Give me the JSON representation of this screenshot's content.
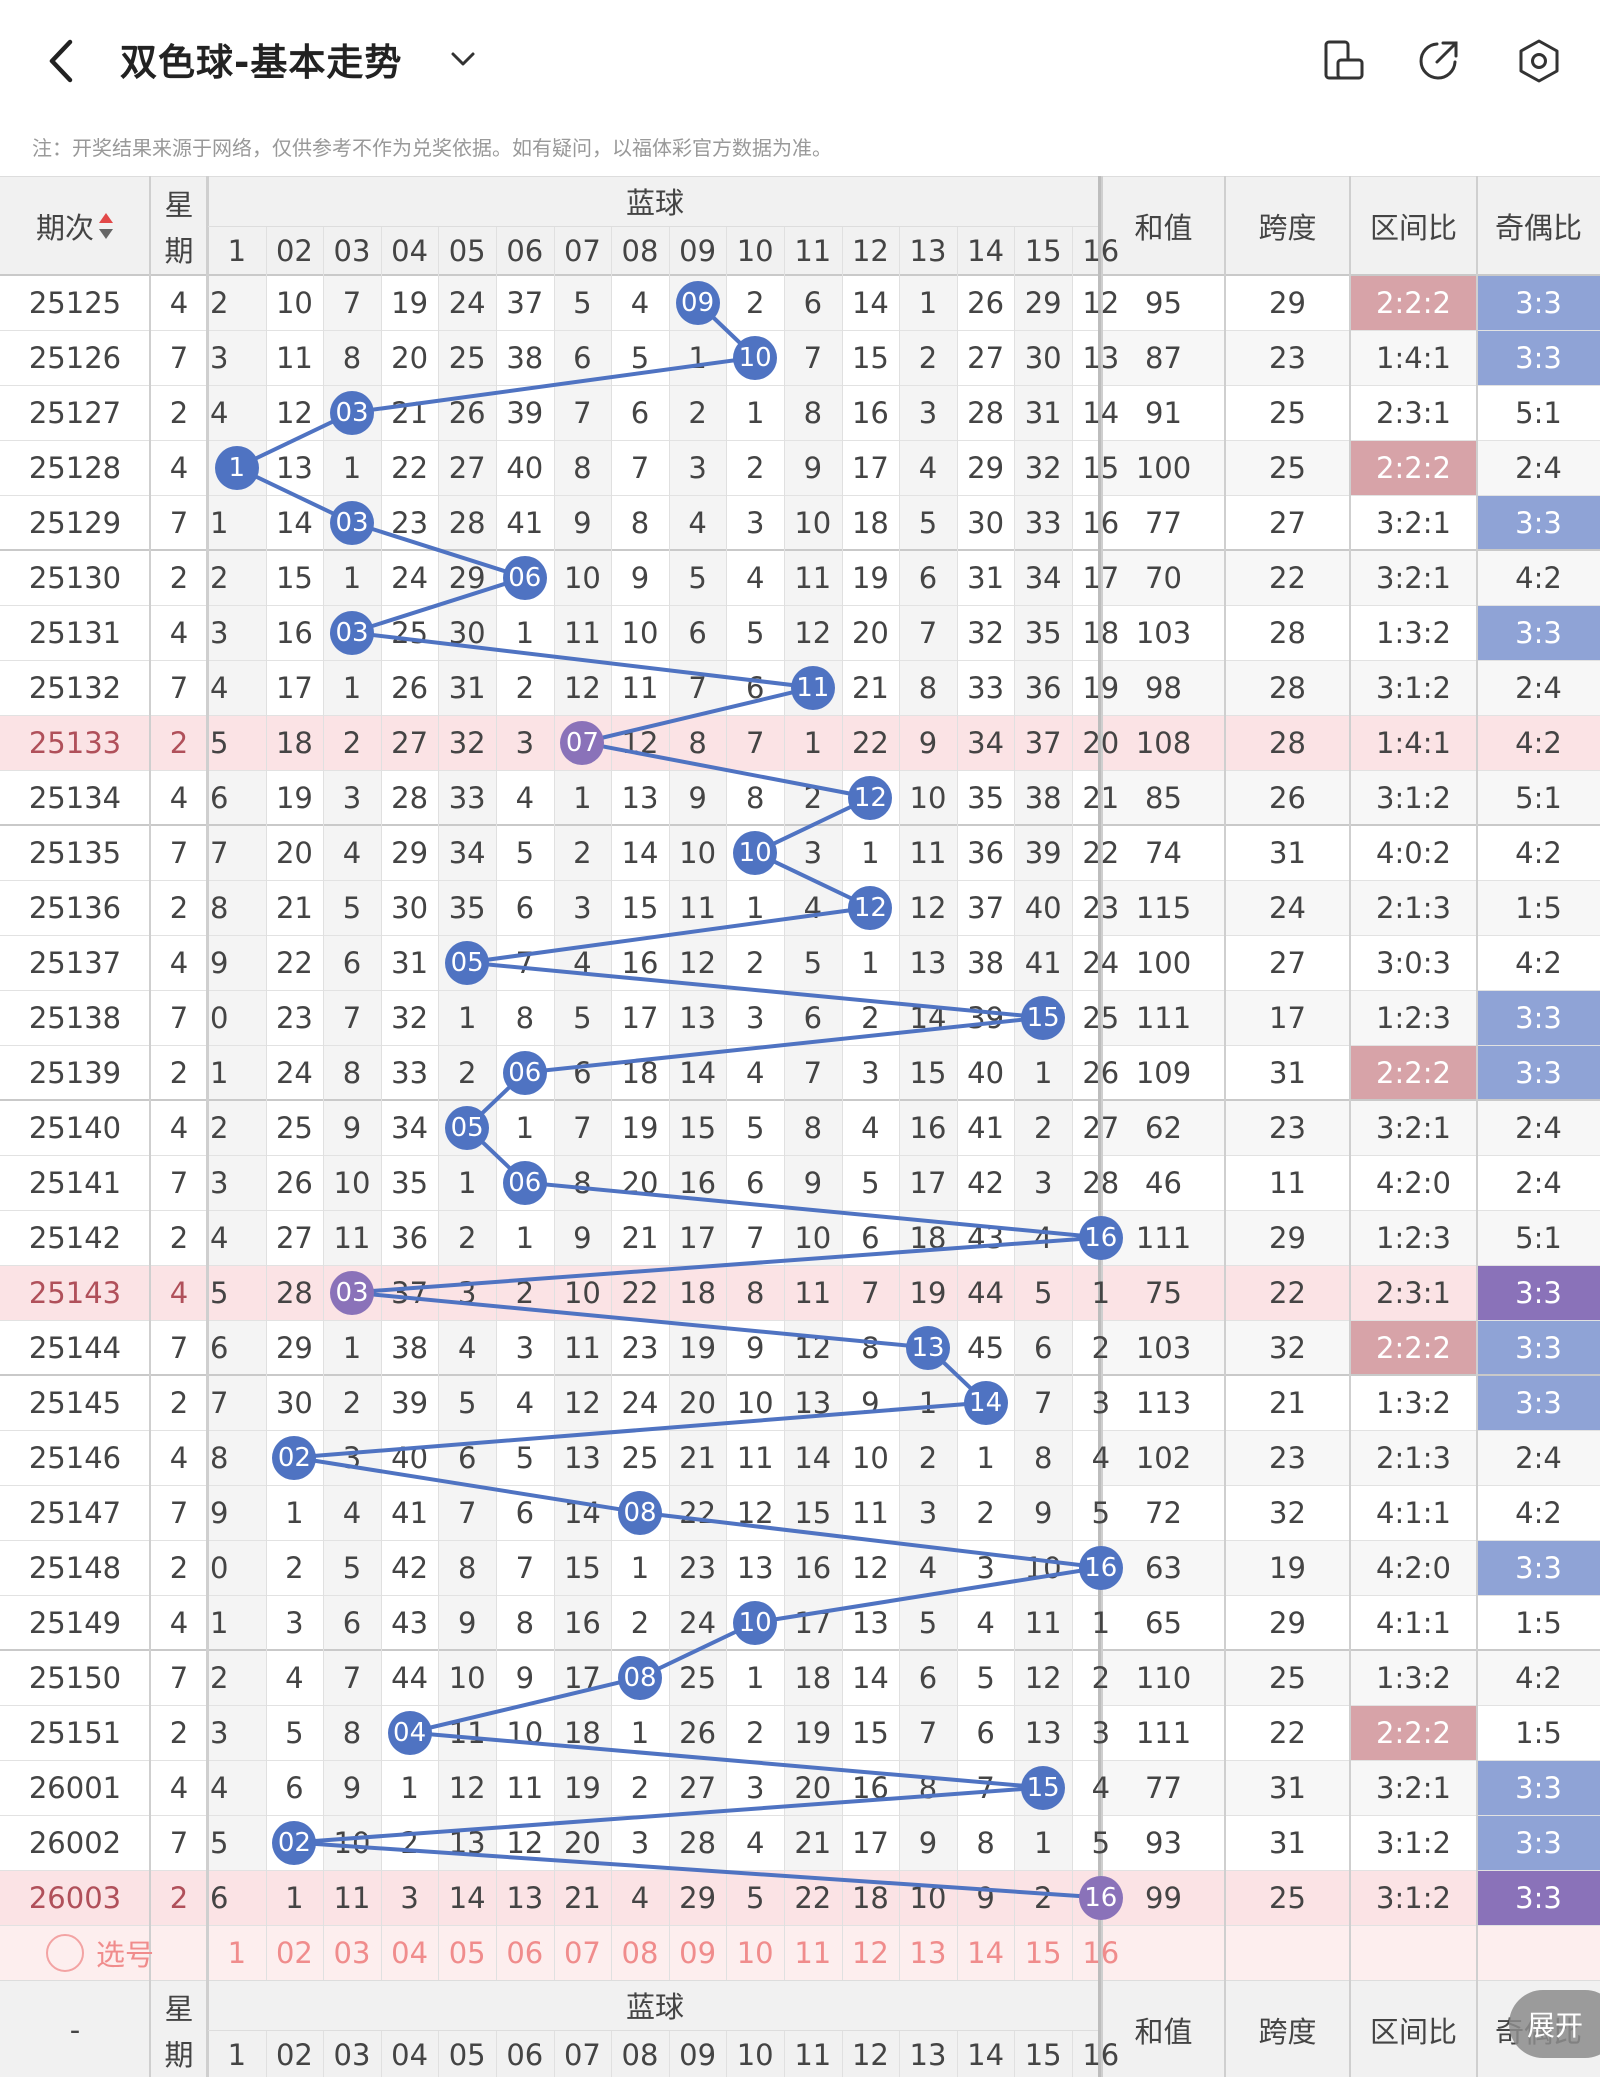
{
  "header": {
    "title": "双色球-基本走势",
    "back_icon": "chevron-left-icon",
    "dropdown_icon": "chevron-down-icon",
    "icons": [
      "phone-landscape-icon",
      "share-icon",
      "settings-hexagon-icon"
    ]
  },
  "note": "注：开奖结果来源于网络，仅供参考不作为兑奖依据。如有疑问，以福体彩官方数据为准。",
  "table": {
    "col_issue": "期次",
    "col_week": "星期",
    "blue_group": "蓝球",
    "blue_cols": [
      "1",
      "02",
      "03",
      "04",
      "05",
      "06",
      "07",
      "08",
      "09",
      "10",
      "11",
      "12",
      "13",
      "14",
      "15",
      "16"
    ],
    "col_sum": "和值",
    "col_span": "跨度",
    "col_zone": "区间比",
    "col_odd": "奇偶比",
    "sort_icon": "sort-arrows-icon",
    "rows": [
      {
        "issue": "25125",
        "week": "4",
        "cells": [
          "2",
          "10",
          "7",
          "19",
          "24",
          "37",
          "5",
          "4",
          "09",
          "2",
          "6",
          "14",
          "1",
          "26",
          "29",
          "12"
        ],
        "blue": 9,
        "sum": "95",
        "span": "29",
        "zone": "2:2:2",
        "odd": "3:3",
        "zone_hl": true,
        "odd_hl": true,
        "row_hl": false
      },
      {
        "issue": "25126",
        "week": "7",
        "cells": [
          "3",
          "11",
          "8",
          "20",
          "25",
          "38",
          "6",
          "5",
          "1",
          "10",
          "7",
          "15",
          "2",
          "27",
          "30",
          "13"
        ],
        "blue": 10,
        "sum": "87",
        "span": "23",
        "zone": "1:4:1",
        "odd": "3:3",
        "zone_hl": false,
        "odd_hl": true,
        "row_hl": false
      },
      {
        "issue": "25127",
        "week": "2",
        "cells": [
          "4",
          "12",
          "03",
          "21",
          "26",
          "39",
          "7",
          "6",
          "2",
          "1",
          "8",
          "16",
          "3",
          "28",
          "31",
          "14"
        ],
        "blue": 3,
        "sum": "91",
        "span": "25",
        "zone": "2:3:1",
        "odd": "5:1",
        "zone_hl": false,
        "odd_hl": false,
        "row_hl": false
      },
      {
        "issue": "25128",
        "week": "4",
        "cells": [
          "1",
          "13",
          "1",
          "22",
          "27",
          "40",
          "8",
          "7",
          "3",
          "2",
          "9",
          "17",
          "4",
          "29",
          "32",
          "15"
        ],
        "blue": 1,
        "sum": "100",
        "span": "25",
        "zone": "2:2:2",
        "odd": "2:4",
        "zone_hl": true,
        "odd_hl": false,
        "row_hl": false
      },
      {
        "issue": "25129",
        "week": "7",
        "cells": [
          "1",
          "14",
          "03",
          "23",
          "28",
          "41",
          "9",
          "8",
          "4",
          "3",
          "10",
          "18",
          "5",
          "30",
          "33",
          "16"
        ],
        "blue": 3,
        "sum": "77",
        "span": "27",
        "zone": "3:2:1",
        "odd": "3:3",
        "zone_hl": false,
        "odd_hl": true,
        "row_hl": false
      },
      {
        "issue": "25130",
        "week": "2",
        "cells": [
          "2",
          "15",
          "1",
          "24",
          "29",
          "06",
          "10",
          "9",
          "5",
          "4",
          "11",
          "19",
          "6",
          "31",
          "34",
          "17"
        ],
        "blue": 6,
        "sum": "70",
        "span": "22",
        "zone": "3:2:1",
        "odd": "4:2",
        "zone_hl": false,
        "odd_hl": false,
        "row_hl": false
      },
      {
        "issue": "25131",
        "week": "4",
        "cells": [
          "3",
          "16",
          "03",
          "25",
          "30",
          "1",
          "11",
          "10",
          "6",
          "5",
          "12",
          "20",
          "7",
          "32",
          "35",
          "18"
        ],
        "blue": 3,
        "sum": "103",
        "span": "28",
        "zone": "1:3:2",
        "odd": "3:3",
        "zone_hl": false,
        "odd_hl": true,
        "row_hl": false
      },
      {
        "issue": "25132",
        "week": "7",
        "cells": [
          "4",
          "17",
          "1",
          "26",
          "31",
          "2",
          "12",
          "11",
          "7",
          "6",
          "11",
          "21",
          "8",
          "33",
          "36",
          "19"
        ],
        "blue": 11,
        "sum": "98",
        "span": "28",
        "zone": "3:1:2",
        "odd": "2:4",
        "zone_hl": false,
        "odd_hl": false,
        "row_hl": false
      },
      {
        "issue": "25133",
        "week": "2",
        "cells": [
          "5",
          "18",
          "2",
          "27",
          "32",
          "3",
          "07",
          "12",
          "8",
          "7",
          "1",
          "22",
          "9",
          "34",
          "37",
          "20"
        ],
        "blue": 7,
        "sum": "108",
        "span": "28",
        "zone": "1:4:1",
        "odd": "4:2",
        "zone_hl": false,
        "odd_hl": false,
        "row_hl": true
      },
      {
        "issue": "25134",
        "week": "4",
        "cells": [
          "6",
          "19",
          "3",
          "28",
          "33",
          "4",
          "1",
          "13",
          "9",
          "8",
          "2",
          "12",
          "10",
          "35",
          "38",
          "21"
        ],
        "blue": 12,
        "sum": "85",
        "span": "26",
        "zone": "3:1:2",
        "odd": "5:1",
        "zone_hl": false,
        "odd_hl": false,
        "row_hl": false
      },
      {
        "issue": "25135",
        "week": "7",
        "cells": [
          "7",
          "20",
          "4",
          "29",
          "34",
          "5",
          "2",
          "14",
          "10",
          "10",
          "3",
          "1",
          "11",
          "36",
          "39",
          "22"
        ],
        "blue": 10,
        "sum": "74",
        "span": "31",
        "zone": "4:0:2",
        "odd": "4:2",
        "zone_hl": false,
        "odd_hl": false,
        "row_hl": false
      },
      {
        "issue": "25136",
        "week": "2",
        "cells": [
          "8",
          "21",
          "5",
          "30",
          "35",
          "6",
          "3",
          "15",
          "11",
          "1",
          "4",
          "12",
          "12",
          "37",
          "40",
          "23"
        ],
        "blue": 12,
        "sum": "115",
        "span": "24",
        "zone": "2:1:3",
        "odd": "1:5",
        "zone_hl": false,
        "odd_hl": false,
        "row_hl": false
      },
      {
        "issue": "25137",
        "week": "4",
        "cells": [
          "9",
          "22",
          "6",
          "31",
          "05",
          "7",
          "4",
          "16",
          "12",
          "2",
          "5",
          "1",
          "13",
          "38",
          "41",
          "24"
        ],
        "blue": 5,
        "sum": "100",
        "span": "27",
        "zone": "3:0:3",
        "odd": "4:2",
        "zone_hl": false,
        "odd_hl": false,
        "row_hl": false
      },
      {
        "issue": "25138",
        "week": "7",
        "cells": [
          "0",
          "23",
          "7",
          "32",
          "1",
          "8",
          "5",
          "17",
          "13",
          "3",
          "6",
          "2",
          "14",
          "39",
          "15",
          "25"
        ],
        "blue": 15,
        "sum": "111",
        "span": "17",
        "zone": "1:2:3",
        "odd": "3:3",
        "zone_hl": false,
        "odd_hl": true,
        "row_hl": false
      },
      {
        "issue": "25139",
        "week": "2",
        "cells": [
          "1",
          "24",
          "8",
          "33",
          "2",
          "06",
          "6",
          "18",
          "14",
          "4",
          "7",
          "3",
          "15",
          "40",
          "1",
          "26"
        ],
        "blue": 6,
        "sum": "109",
        "span": "31",
        "zone": "2:2:2",
        "odd": "3:3",
        "zone_hl": true,
        "odd_hl": true,
        "row_hl": false
      },
      {
        "issue": "25140",
        "week": "4",
        "cells": [
          "2",
          "25",
          "9",
          "34",
          "05",
          "1",
          "7",
          "19",
          "15",
          "5",
          "8",
          "4",
          "16",
          "41",
          "2",
          "27"
        ],
        "blue": 5,
        "sum": "62",
        "span": "23",
        "zone": "3:2:1",
        "odd": "2:4",
        "zone_hl": false,
        "odd_hl": false,
        "row_hl": false
      },
      {
        "issue": "25141",
        "week": "7",
        "cells": [
          "3",
          "26",
          "10",
          "35",
          "1",
          "06",
          "8",
          "20",
          "16",
          "6",
          "9",
          "5",
          "17",
          "42",
          "3",
          "28"
        ],
        "blue": 6,
        "sum": "46",
        "span": "11",
        "zone": "4:2:0",
        "odd": "2:4",
        "zone_hl": false,
        "odd_hl": false,
        "row_hl": false
      },
      {
        "issue": "25142",
        "week": "2",
        "cells": [
          "4",
          "27",
          "11",
          "36",
          "2",
          "1",
          "9",
          "21",
          "17",
          "7",
          "10",
          "6",
          "18",
          "43",
          "4",
          "16"
        ],
        "blue": 16,
        "sum": "111",
        "span": "29",
        "zone": "1:2:3",
        "odd": "5:1",
        "zone_hl": false,
        "odd_hl": false,
        "row_hl": false
      },
      {
        "issue": "25143",
        "week": "4",
        "cells": [
          "5",
          "28",
          "03",
          "37",
          "3",
          "2",
          "10",
          "22",
          "18",
          "8",
          "11",
          "7",
          "19",
          "44",
          "5",
          "1"
        ],
        "blue": 3,
        "sum": "75",
        "span": "22",
        "zone": "2:3:1",
        "odd": "3:3",
        "zone_hl": false,
        "odd_hl": true,
        "row_hl": true
      },
      {
        "issue": "25144",
        "week": "7",
        "cells": [
          "6",
          "29",
          "1",
          "38",
          "4",
          "3",
          "11",
          "23",
          "19",
          "9",
          "12",
          "8",
          "13",
          "45",
          "6",
          "2"
        ],
        "blue": 13,
        "sum": "103",
        "span": "32",
        "zone": "2:2:2",
        "odd": "3:3",
        "zone_hl": true,
        "odd_hl": true,
        "row_hl": false
      },
      {
        "issue": "25145",
        "week": "2",
        "cells": [
          "7",
          "30",
          "2",
          "39",
          "5",
          "4",
          "12",
          "24",
          "20",
          "10",
          "13",
          "9",
          "1",
          "14",
          "7",
          "3"
        ],
        "blue": 14,
        "sum": "113",
        "span": "21",
        "zone": "1:3:2",
        "odd": "3:3",
        "zone_hl": false,
        "odd_hl": true,
        "row_hl": false
      },
      {
        "issue": "25146",
        "week": "4",
        "cells": [
          "8",
          "02",
          "3",
          "40",
          "6",
          "5",
          "13",
          "25",
          "21",
          "11",
          "14",
          "10",
          "2",
          "1",
          "8",
          "4"
        ],
        "blue": 2,
        "sum": "102",
        "span": "23",
        "zone": "2:1:3",
        "odd": "2:4",
        "zone_hl": false,
        "odd_hl": false,
        "row_hl": false
      },
      {
        "issue": "25147",
        "week": "7",
        "cells": [
          "9",
          "1",
          "4",
          "41",
          "7",
          "6",
          "14",
          "08",
          "22",
          "12",
          "15",
          "11",
          "3",
          "2",
          "9",
          "5"
        ],
        "blue": 8,
        "sum": "72",
        "span": "32",
        "zone": "4:1:1",
        "odd": "4:2",
        "zone_hl": false,
        "odd_hl": false,
        "row_hl": false
      },
      {
        "issue": "25148",
        "week": "2",
        "cells": [
          "0",
          "2",
          "5",
          "42",
          "8",
          "7",
          "15",
          "1",
          "23",
          "13",
          "16",
          "12",
          "4",
          "3",
          "10",
          "16"
        ],
        "blue": 16,
        "sum": "63",
        "span": "19",
        "zone": "4:2:0",
        "odd": "3:3",
        "zone_hl": false,
        "odd_hl": true,
        "row_hl": false
      },
      {
        "issue": "25149",
        "week": "4",
        "cells": [
          "1",
          "3",
          "6",
          "43",
          "9",
          "8",
          "16",
          "2",
          "24",
          "10",
          "17",
          "13",
          "5",
          "4",
          "11",
          "1"
        ],
        "blue": 10,
        "sum": "65",
        "span": "29",
        "zone": "4:1:1",
        "odd": "1:5",
        "zone_hl": false,
        "odd_hl": false,
        "row_hl": false
      },
      {
        "issue": "25150",
        "week": "7",
        "cells": [
          "2",
          "4",
          "7",
          "44",
          "10",
          "9",
          "17",
          "08",
          "25",
          "1",
          "18",
          "14",
          "6",
          "5",
          "12",
          "2"
        ],
        "blue": 8,
        "sum": "110",
        "span": "25",
        "zone": "1:3:2",
        "odd": "4:2",
        "zone_hl": false,
        "odd_hl": false,
        "row_hl": false
      },
      {
        "issue": "25151",
        "week": "2",
        "cells": [
          "3",
          "5",
          "8",
          "04",
          "11",
          "10",
          "18",
          "1",
          "26",
          "2",
          "19",
          "15",
          "7",
          "6",
          "13",
          "3"
        ],
        "blue": 4,
        "sum": "111",
        "span": "22",
        "zone": "2:2:2",
        "odd": "1:5",
        "zone_hl": true,
        "odd_hl": false,
        "row_hl": false
      },
      {
        "issue": "26001",
        "week": "4",
        "cells": [
          "4",
          "6",
          "9",
          "1",
          "12",
          "11",
          "19",
          "2",
          "27",
          "3",
          "20",
          "16",
          "8",
          "7",
          "15",
          "4"
        ],
        "blue": 15,
        "sum": "77",
        "span": "31",
        "zone": "3:2:1",
        "odd": "3:3",
        "zone_hl": false,
        "odd_hl": true,
        "row_hl": false
      },
      {
        "issue": "26002",
        "week": "7",
        "cells": [
          "5",
          "02",
          "10",
          "2",
          "13",
          "12",
          "20",
          "3",
          "28",
          "4",
          "21",
          "17",
          "9",
          "8",
          "1",
          "5"
        ],
        "blue": 2,
        "sum": "93",
        "span": "31",
        "zone": "3:1:2",
        "odd": "3:3",
        "zone_hl": false,
        "odd_hl": true,
        "row_hl": false
      },
      {
        "issue": "26003",
        "week": "2",
        "cells": [
          "6",
          "1",
          "11",
          "3",
          "14",
          "13",
          "21",
          "4",
          "29",
          "5",
          "22",
          "18",
          "10",
          "9",
          "2",
          "16"
        ],
        "blue": 16,
        "sum": "99",
        "span": "25",
        "zone": "3:1:2",
        "odd": "3:3",
        "zone_hl": false,
        "odd_hl": true,
        "row_hl": true
      }
    ],
    "pick_label": "选号",
    "pick_icon": "circle-select-icon",
    "footer_issue": "-"
  },
  "expand_label": "展开",
  "colors": {
    "ball": "#4f73c2",
    "ball_hl": "#8a72b9",
    "zone_hl": "#d7a3a8",
    "odd_hl": "#8fa3d6",
    "row_hl": "#fbe3e5",
    "pick_text": "#f08c8c"
  }
}
